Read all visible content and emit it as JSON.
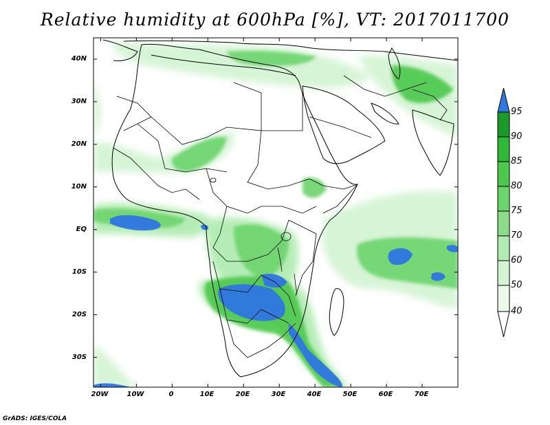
{
  "title": "Relative humidity at 600hPa [%], VT: 2017011700",
  "credit": "GrADS: IGES/COLA",
  "map": {
    "lat_ticks": [
      {
        "label": "40N",
        "lat": 40
      },
      {
        "label": "30N",
        "lat": 30
      },
      {
        "label": "20N",
        "lat": 20
      },
      {
        "label": "10N",
        "lat": 10
      },
      {
        "label": "EQ",
        "lat": 0
      },
      {
        "label": "10S",
        "lat": -10
      },
      {
        "label": "20S",
        "lat": -20
      },
      {
        "label": "30S",
        "lat": -30
      }
    ],
    "lon_ticks": [
      {
        "label": "20W",
        "lon": -20
      },
      {
        "label": "10W",
        "lon": -10
      },
      {
        "label": "0",
        "lon": 0
      },
      {
        "label": "10E",
        "lon": 10
      },
      {
        "label": "20E",
        "lon": 20
      },
      {
        "label": "30E",
        "lon": 30
      },
      {
        "label": "40E",
        "lon": 40
      },
      {
        "label": "50E",
        "lon": 50
      },
      {
        "label": "60E",
        "lon": 60
      },
      {
        "label": "70E",
        "lon": 70
      }
    ]
  },
  "colorbar": {
    "levels": [
      "95",
      "90",
      "85",
      "80",
      "75",
      "70",
      "60",
      "50",
      "40"
    ],
    "colors": {
      "gt95": "#2f78e0",
      "90-95": "#1a9a28",
      "85-90": "#30b838",
      "80-85": "#4cc84c",
      "75-80": "#6cd46c",
      "70-75": "#8cdc8c",
      "60-70": "#b2ecb2",
      "50-60": "#d4f4d4",
      "40-50": "#ecfaec",
      "lt40": "#ffffff"
    }
  },
  "humidity_colors": {
    "very_high": "#2f78e0",
    "high": "#30b838",
    "moderate": "#6cd46c",
    "low": "#b2ecb2",
    "faint": "#e0f7e0"
  }
}
